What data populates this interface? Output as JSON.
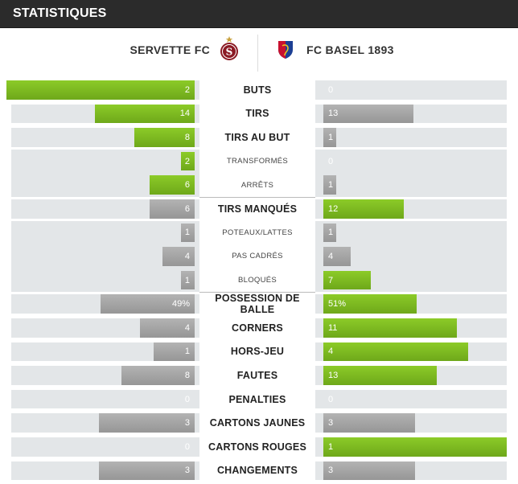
{
  "header": {
    "title": "STATISTIQUES"
  },
  "teams": {
    "home": {
      "name": "SERVETTE FC",
      "crest": "servette-crest-icon"
    },
    "away": {
      "name": "FC BASEL 1893",
      "crest": "basel-crest-icon"
    }
  },
  "colors": {
    "leader": "#7bb81f",
    "trailer": "#a6a6a6",
    "row_bg": "#e3e6e8",
    "header_bg": "#2b2b2b"
  },
  "stats": [
    {
      "label": "BUTS",
      "kind": "major",
      "home": "2",
      "away": "0",
      "home_level": 1.0,
      "away_level": 0.0,
      "leader": "home"
    },
    {
      "label": "TIRS",
      "kind": "major",
      "home": "14",
      "away": "13",
      "home_level": 0.53,
      "away_level": 0.49,
      "leader": "home"
    },
    {
      "label": "TIRS AU BUT",
      "kind": "major",
      "home": "8",
      "away": "1",
      "home_level": 0.32,
      "away_level": 0.07,
      "leader": "home"
    },
    {
      "label": "TRANSFORMÉS",
      "kind": "sub",
      "home": "2",
      "away": "0",
      "home_level": 0.07,
      "away_level": 0.0,
      "leader": "home"
    },
    {
      "label": "ARRÊTS",
      "kind": "sub",
      "home": "6",
      "away": "1",
      "home_level": 0.24,
      "away_level": 0.07,
      "leader": "home"
    },
    {
      "label": "TIRS MANQUÉS",
      "kind": "major",
      "home": "6",
      "away": "12",
      "home_level": 0.24,
      "away_level": 0.44,
      "leader": "away"
    },
    {
      "label": "POTEAUX/LATTES",
      "kind": "sub",
      "home": "1",
      "away": "1",
      "home_level": 0.07,
      "away_level": 0.07,
      "leader": "none"
    },
    {
      "label": "PAS CADRÉS",
      "kind": "sub",
      "home": "4",
      "away": "4",
      "home_level": 0.17,
      "away_level": 0.15,
      "leader": "none"
    },
    {
      "label": "BLOQUÉS",
      "kind": "sub",
      "home": "1",
      "away": "7",
      "home_level": 0.07,
      "away_level": 0.26,
      "leader": "away"
    },
    {
      "label": "POSSESSION DE BALLE",
      "kind": "major",
      "home": "49%",
      "away": "51%",
      "home_level": 0.5,
      "away_level": 0.51,
      "leader": "away"
    },
    {
      "label": "CORNERS",
      "kind": "major",
      "home": "4",
      "away": "11",
      "home_level": 0.29,
      "away_level": 0.73,
      "leader": "away"
    },
    {
      "label": "HORS-JEU",
      "kind": "major",
      "home": "1",
      "away": "4",
      "home_level": 0.22,
      "away_level": 0.79,
      "leader": "away"
    },
    {
      "label": "FAUTES",
      "kind": "major",
      "home": "8",
      "away": "13",
      "home_level": 0.39,
      "away_level": 0.62,
      "leader": "away"
    },
    {
      "label": "PENALTIES",
      "kind": "major",
      "home": "0",
      "away": "0",
      "home_level": 0.0,
      "away_level": 0.0,
      "leader": "none"
    },
    {
      "label": "CARTONS JAUNES",
      "kind": "major",
      "home": "3",
      "away": "3",
      "home_level": 0.51,
      "away_level": 0.5,
      "leader": "none"
    },
    {
      "label": "CARTONS ROUGES",
      "kind": "major",
      "home": "0",
      "away": "1",
      "home_level": 0.0,
      "away_level": 1.0,
      "leader": "away"
    },
    {
      "label": "CHANGEMENTS",
      "kind": "major",
      "home": "3",
      "away": "3",
      "home_level": 0.51,
      "away_level": 0.5,
      "leader": "none"
    }
  ]
}
